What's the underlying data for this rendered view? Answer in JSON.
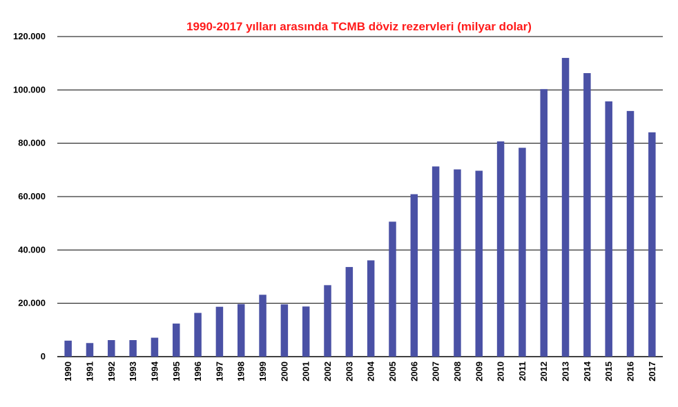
{
  "chart_data": {
    "type": "bar",
    "title": "1990-2017 yılları arasında TCMB döviz rezervleri (milyar dolar)",
    "xlabel": "",
    "ylabel": "",
    "categories": [
      "1990",
      "1991",
      "1992",
      "1993",
      "1994",
      "1995",
      "1996",
      "1997",
      "1998",
      "1999",
      "2000",
      "2001",
      "2002",
      "2003",
      "2004",
      "2005",
      "2006",
      "2007",
      "2008",
      "2009",
      "2010",
      "2011",
      "2012",
      "2013",
      "2014",
      "2015",
      "2016",
      "2017"
    ],
    "values": [
      6,
      5.1,
      6.2,
      6.2,
      7.1,
      12.4,
      16.4,
      18.7,
      19.7,
      23.2,
      19.6,
      18.8,
      26.8,
      33.6,
      36.1,
      50.6,
      60.9,
      71.3,
      70.2,
      69.7,
      80.7,
      78.3,
      100.3,
      112,
      106.3,
      95.7,
      92.1,
      84.1
    ],
    "ylim": [
      0,
      120
    ],
    "yticks": [
      "0",
      "20.000",
      "40.000",
      "60.000",
      "80.000",
      "100.000",
      "120.000"
    ],
    "grid": true,
    "colors": {
      "bar": "#4a51a5",
      "title": "#ff1a1a",
      "grid": "#000000"
    }
  }
}
